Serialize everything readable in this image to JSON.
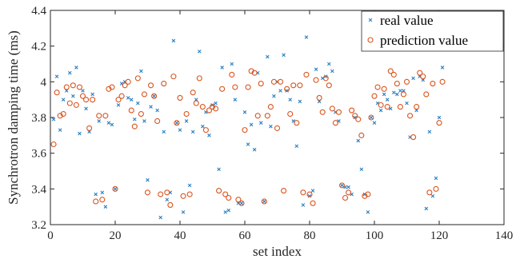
{
  "chart_data": {
    "type": "scatter",
    "xlabel": "set index",
    "ylabel": "Synchrotron damping time (ms)",
    "xlim": [
      0,
      140
    ],
    "ylim": [
      3.2,
      4.4
    ],
    "xticks": [
      0,
      20,
      40,
      60,
      80,
      100,
      120,
      140
    ],
    "yticks": [
      3.2,
      3.4,
      3.6,
      3.8,
      4,
      4.2,
      4.4
    ],
    "grid": false,
    "legend_position": "top-right",
    "series": [
      {
        "name": "real value",
        "marker": "x",
        "color": "#2a7fc1",
        "points": [
          [
            1,
            3.79
          ],
          [
            2,
            4.03
          ],
          [
            3,
            3.73
          ],
          [
            4,
            3.9
          ],
          [
            5,
            3.95
          ],
          [
            6,
            4.05
          ],
          [
            7,
            3.92
          ],
          [
            8,
            4.08
          ],
          [
            9,
            3.71
          ],
          [
            10,
            3.95
          ],
          [
            11,
            3.85
          ],
          [
            12,
            3.72
          ],
          [
            13,
            3.93
          ],
          [
            14,
            3.37
          ],
          [
            15,
            3.78
          ],
          [
            16,
            3.38
          ],
          [
            17,
            3.3
          ],
          [
            18,
            3.77
          ],
          [
            19,
            3.76
          ],
          [
            20,
            3.4
          ],
          [
            21,
            3.87
          ],
          [
            22,
            3.99
          ],
          [
            23,
            4.0
          ],
          [
            24,
            3.91
          ],
          [
            25,
            3.9
          ],
          [
            26,
            3.79
          ],
          [
            27,
            3.88
          ],
          [
            28,
            4.06
          ],
          [
            29,
            3.78
          ],
          [
            30,
            3.45
          ],
          [
            31,
            3.86
          ],
          [
            32,
            3.92
          ],
          [
            33,
            3.84
          ],
          [
            34,
            3.24
          ],
          [
            35,
            3.72
          ],
          [
            36,
            3.34
          ],
          [
            37,
            3.38
          ],
          [
            38,
            4.23
          ],
          [
            39,
            3.77
          ],
          [
            40,
            3.73
          ],
          [
            41,
            3.27
          ],
          [
            42,
            3.78
          ],
          [
            43,
            3.42
          ],
          [
            44,
            3.72
          ],
          [
            45,
            3.9
          ],
          [
            46,
            4.17
          ],
          [
            47,
            3.75
          ],
          [
            48,
            3.83
          ],
          [
            49,
            3.7
          ],
          [
            50,
            3.87
          ],
          [
            51,
            3.88
          ],
          [
            52,
            3.51
          ],
          [
            53,
            4.08
          ],
          [
            54,
            3.27
          ],
          [
            55,
            3.28
          ],
          [
            56,
            4.1
          ],
          [
            57,
            3.9
          ],
          [
            58,
            3.32
          ],
          [
            59,
            3.32
          ],
          [
            60,
            3.83
          ],
          [
            61,
            3.65
          ],
          [
            62,
            3.76
          ],
          [
            63,
            3.62
          ],
          [
            64,
            4.05
          ],
          [
            65,
            3.77
          ],
          [
            66,
            3.33
          ],
          [
            67,
            4.14
          ],
          [
            68,
            3.75
          ],
          [
            69,
            3.92
          ],
          [
            70,
            4.0
          ],
          [
            71,
            3.95
          ],
          [
            72,
            4.15
          ],
          [
            73,
            3.95
          ],
          [
            74,
            3.9
          ],
          [
            75,
            3.78
          ],
          [
            76,
            3.64
          ],
          [
            77,
            3.89
          ],
          [
            78,
            3.31
          ],
          [
            79,
            4.25
          ],
          [
            80,
            3.36
          ],
          [
            81,
            3.39
          ],
          [
            82,
            4.07
          ],
          [
            83,
            3.89
          ],
          [
            84,
            4.02
          ],
          [
            85,
            4.03
          ],
          [
            86,
            4.1
          ],
          [
            87,
            4.06
          ],
          [
            88,
            3.83
          ],
          [
            89,
            3.78
          ],
          [
            90,
            3.42
          ],
          [
            91,
            3.41
          ],
          [
            92,
            3.41
          ],
          [
            93,
            3.37
          ],
          [
            94,
            3.8
          ],
          [
            95,
            3.67
          ],
          [
            96,
            3.51
          ],
          [
            97,
            3.37
          ],
          [
            98,
            3.27
          ],
          [
            99,
            3.8
          ],
          [
            100,
            3.77
          ],
          [
            101,
            3.88
          ],
          [
            102,
            3.84
          ],
          [
            103,
            3.93
          ],
          [
            104,
            3.9
          ],
          [
            105,
            3.85
          ],
          [
            106,
            3.94
          ],
          [
            107,
            3.93
          ],
          [
            108,
            3.95
          ],
          [
            109,
            3.95
          ],
          [
            110,
            3.88
          ],
          [
            111,
            3.69
          ],
          [
            112,
            4.02
          ],
          [
            113,
            3.84
          ],
          [
            114,
            4.03
          ],
          [
            115,
            4.01
          ],
          [
            116,
            3.29
          ],
          [
            117,
            3.72
          ],
          [
            118,
            3.36
          ],
          [
            119,
            3.46
          ],
          [
            120,
            3.8
          ],
          [
            121,
            4.08
          ]
        ]
      },
      {
        "name": "prediction value",
        "marker": "o",
        "color": "#d9541e",
        "points": [
          [
            1,
            3.65
          ],
          [
            2,
            3.94
          ],
          [
            3,
            3.81
          ],
          [
            4,
            3.82
          ],
          [
            5,
            3.97
          ],
          [
            6,
            3.88
          ],
          [
            7,
            3.98
          ],
          [
            8,
            3.87
          ],
          [
            9,
            3.97
          ],
          [
            10,
            3.92
          ],
          [
            11,
            3.9
          ],
          [
            12,
            3.74
          ],
          [
            13,
            3.9
          ],
          [
            14,
            3.33
          ],
          [
            15,
            3.81
          ],
          [
            16,
            3.34
          ],
          [
            17,
            3.81
          ],
          [
            18,
            3.96
          ],
          [
            19,
            3.97
          ],
          [
            20,
            3.4
          ],
          [
            21,
            3.9
          ],
          [
            22,
            3.92
          ],
          [
            23,
            3.98
          ],
          [
            24,
            4.0
          ],
          [
            25,
            3.84
          ],
          [
            26,
            3.75
          ],
          [
            27,
            4.02
          ],
          [
            28,
            3.82
          ],
          [
            29,
            3.93
          ],
          [
            30,
            3.38
          ],
          [
            31,
            3.98
          ],
          [
            32,
            3.92
          ],
          [
            33,
            3.78
          ],
          [
            34,
            3.37
          ],
          [
            35,
            3.99
          ],
          [
            36,
            3.38
          ],
          [
            37,
            3.31
          ],
          [
            38,
            4.03
          ],
          [
            39,
            3.77
          ],
          [
            40,
            3.91
          ],
          [
            41,
            3.36
          ],
          [
            42,
            3.82
          ],
          [
            43,
            3.37
          ],
          [
            44,
            3.94
          ],
          [
            45,
            3.88
          ],
          [
            46,
            4.02
          ],
          [
            47,
            3.86
          ],
          [
            48,
            3.73
          ],
          [
            49,
            3.84
          ],
          [
            50,
            3.86
          ],
          [
            51,
            3.85
          ],
          [
            52,
            3.39
          ],
          [
            53,
            3.96
          ],
          [
            54,
            3.37
          ],
          [
            55,
            3.35
          ],
          [
            56,
            4.04
          ],
          [
            57,
            3.97
          ],
          [
            58,
            3.34
          ],
          [
            59,
            3.32
          ],
          [
            60,
            3.73
          ],
          [
            61,
            3.97
          ],
          [
            62,
            4.06
          ],
          [
            63,
            4.05
          ],
          [
            64,
            3.81
          ],
          [
            65,
            3.99
          ],
          [
            66,
            3.33
          ],
          [
            67,
            3.81
          ],
          [
            68,
            3.86
          ],
          [
            69,
            4.0
          ],
          [
            70,
            3.74
          ],
          [
            71,
            4.0
          ],
          [
            72,
            3.39
          ],
          [
            73,
            3.96
          ],
          [
            74,
            3.82
          ],
          [
            75,
            3.98
          ],
          [
            76,
            3.77
          ],
          [
            77,
            3.98
          ],
          [
            78,
            3.38
          ],
          [
            79,
            4.04
          ],
          [
            80,
            3.37
          ],
          [
            81,
            3.32
          ],
          [
            82,
            4.01
          ],
          [
            83,
            3.91
          ],
          [
            84,
            3.83
          ],
          [
            85,
            4.02
          ],
          [
            86,
            3.98
          ],
          [
            87,
            3.85
          ],
          [
            88,
            3.77
          ],
          [
            89,
            3.83
          ],
          [
            90,
            3.42
          ],
          [
            91,
            3.35
          ],
          [
            92,
            3.38
          ],
          [
            93,
            3.84
          ],
          [
            94,
            3.81
          ],
          [
            95,
            3.79
          ],
          [
            96,
            3.7
          ],
          [
            97,
            3.36
          ],
          [
            98,
            3.37
          ],
          [
            99,
            3.8
          ],
          [
            100,
            3.92
          ],
          [
            101,
            3.97
          ],
          [
            102,
            3.87
          ],
          [
            103,
            3.96
          ],
          [
            104,
            3.86
          ],
          [
            105,
            4.06
          ],
          [
            106,
            4.04
          ],
          [
            107,
            3.99
          ],
          [
            108,
            3.86
          ],
          [
            109,
            3.93
          ],
          [
            110,
            4.0
          ],
          [
            111,
            3.81
          ],
          [
            112,
            3.69
          ],
          [
            113,
            3.86
          ],
          [
            114,
            4.05
          ],
          [
            115,
            4.03
          ],
          [
            116,
            3.93
          ],
          [
            117,
            3.38
          ],
          [
            118,
            3.99
          ],
          [
            119,
            3.4
          ],
          [
            120,
            3.77
          ],
          [
            121,
            4.0
          ]
        ]
      }
    ]
  }
}
